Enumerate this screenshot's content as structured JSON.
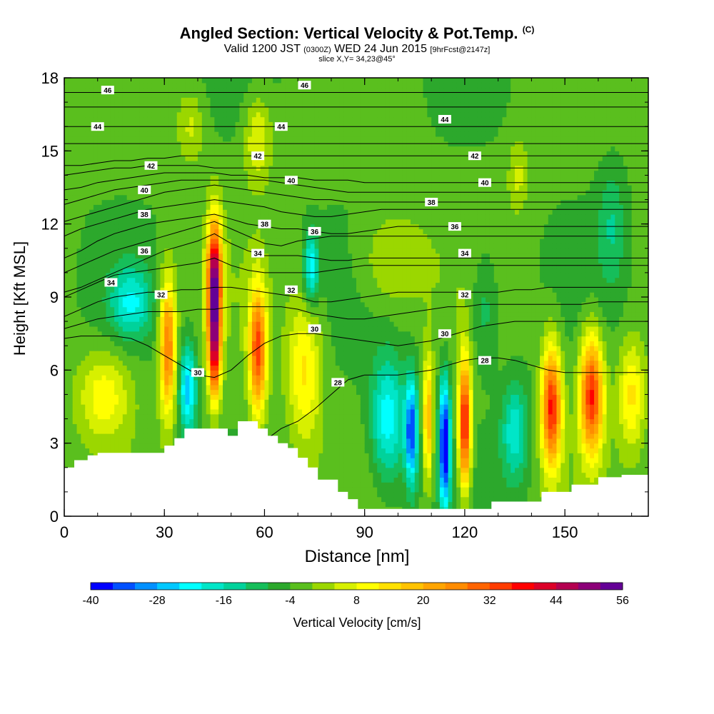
{
  "chart_data": {
    "type": "heatmap",
    "title": "Angled Section: Vertical Velocity & Pot.Temp.",
    "title_tag": "(C)",
    "subtitle_main_a": "Valid 1200 JST",
    "subtitle_small_a": "(0300Z)",
    "subtitle_main_b": "WED 24 Jun 2015",
    "subtitle_small_b": "[9hrFcst@2147z]",
    "slice_text": "slice X,Y= 34,23@45°",
    "xlabel": "Distance [nm]",
    "ylabel": "Height [Kft MSL]",
    "xlim": [
      0,
      175
    ],
    "ylim": [
      0,
      18
    ],
    "xticks": [
      "0",
      "30",
      "60",
      "90",
      "120",
      "150"
    ],
    "yticks": [
      "0",
      "3",
      "6",
      "9",
      "12",
      "15",
      "18"
    ],
    "colorbar": {
      "title": "Vertical Velocity [cm/s]",
      "range": [
        -40,
        56
      ],
      "step": 4,
      "tick_labels": [
        "-40",
        "-28",
        "-16",
        "-4",
        "8",
        "20",
        "32",
        "44",
        "56"
      ],
      "colors": [
        "#0000ff",
        "#0050ff",
        "#0090ff",
        "#00c8ff",
        "#00ffff",
        "#00e6c8",
        "#00d29b",
        "#16be5a",
        "#2ca82c",
        "#5abf1e",
        "#9bd700",
        "#d7f000",
        "#ffff00",
        "#ffe100",
        "#ffc300",
        "#ffa500",
        "#ff8c00",
        "#ff6400",
        "#ff3c00",
        "#ff0000",
        "#dc0028",
        "#b40050",
        "#8c0078",
        "#640096"
      ]
    },
    "terrain_profile": {
      "x": [
        0,
        3,
        3,
        7,
        7,
        10,
        10,
        30,
        30,
        33,
        33,
        36,
        36,
        49,
        49,
        52,
        52,
        58,
        58,
        61,
        61,
        64,
        64,
        67,
        67,
        70,
        70,
        73,
        73,
        76,
        76,
        82,
        82,
        85,
        85,
        88,
        88,
        128,
        128,
        143,
        143,
        152,
        152,
        160,
        160,
        167,
        167,
        175
      ],
      "y": [
        2.0,
        2.0,
        2.3,
        2.3,
        2.5,
        2.5,
        2.6,
        2.6,
        2.9,
        2.9,
        3.2,
        3.2,
        3.6,
        3.6,
        3.3,
        3.3,
        3.9,
        3.9,
        3.6,
        3.6,
        3.3,
        3.3,
        3.0,
        3.0,
        2.8,
        2.8,
        2.4,
        2.4,
        2.0,
        2.0,
        1.5,
        1.5,
        1.0,
        1.0,
        0.7,
        0.7,
        0.3,
        0.3,
        0.6,
        0.6,
        1.0,
        1.0,
        1.3,
        1.3,
        1.6,
        1.6,
        1.7,
        1.7
      ]
    },
    "wind_features": [
      {
        "x": 20,
        "z": 8.8,
        "w": -16,
        "rx": 6,
        "rz": 1.4
      },
      {
        "x": 31,
        "z": 7.0,
        "w": 32,
        "rx": 2.4,
        "rz": 2.8
      },
      {
        "x": 37,
        "z": 5.2,
        "w": -24,
        "rx": 2.5,
        "rz": 1.8
      },
      {
        "x": 45,
        "z": 9.5,
        "w": 56,
        "rx": 2.2,
        "rz": 2.6
      },
      {
        "x": 45,
        "z": 6.5,
        "w": 32,
        "rx": 1.8,
        "rz": 2.0
      },
      {
        "x": 58,
        "z": 6.8,
        "w": 36,
        "rx": 2.6,
        "rz": 2.6
      },
      {
        "x": 72,
        "z": 6.0,
        "w": 16,
        "rx": 5,
        "rz": 3
      },
      {
        "x": 74,
        "z": 10.2,
        "w": -20,
        "rx": 2.2,
        "rz": 1.4
      },
      {
        "x": 97,
        "z": 4.0,
        "w": -20,
        "rx": 5,
        "rz": 2.5
      },
      {
        "x": 104,
        "z": 3.5,
        "w": -32,
        "rx": 1.8,
        "rz": 2.2
      },
      {
        "x": 109,
        "z": 4.0,
        "w": 24,
        "rx": 1.4,
        "rz": 2.5
      },
      {
        "x": 114,
        "z": 3.0,
        "w": -40,
        "rx": 1.6,
        "rz": 2.6
      },
      {
        "x": 120,
        "z": 3.8,
        "w": 44,
        "rx": 1.8,
        "rz": 2.6
      },
      {
        "x": 135,
        "z": 3.5,
        "w": -16,
        "rx": 4,
        "rz": 2.0
      },
      {
        "x": 146,
        "z": 4.5,
        "w": 40,
        "rx": 3,
        "rz": 2.5
      },
      {
        "x": 158,
        "z": 5.0,
        "w": 40,
        "rx": 3.5,
        "rz": 2.4
      },
      {
        "x": 170,
        "z": 5.0,
        "w": 16,
        "rx": 4,
        "rz": 2.2
      },
      {
        "x": 58,
        "z": 15.5,
        "w": 12,
        "rx": 4,
        "rz": 1.8
      },
      {
        "x": 38,
        "z": 16.0,
        "w": 8,
        "rx": 4,
        "rz": 1.5
      },
      {
        "x": 136,
        "z": 14.0,
        "w": 8,
        "rx": 3,
        "rz": 1.5
      },
      {
        "x": 98,
        "z": 10.5,
        "w": 8,
        "rx": 10,
        "rz": 2.0
      },
      {
        "x": 126,
        "z": 8.5,
        "w": -8,
        "rx": 4,
        "rz": 2.5
      },
      {
        "x": 164,
        "z": 12.0,
        "w": -8,
        "rx": 4,
        "rz": 2.5
      },
      {
        "x": 12,
        "z": 5.0,
        "w": 14,
        "rx": 8,
        "rz": 1.8
      }
    ],
    "theta_levels": [
      {
        "value": 28,
        "ys": [
          0.8,
          0.9,
          1.0,
          1.1,
          1.2,
          1.3,
          1.5,
          1.6,
          1.8,
          2.0,
          2.3,
          2.6,
          3.1,
          3.6,
          3.9,
          4.4,
          5.0,
          5.6,
          5.8,
          5.8,
          5.8,
          5.9,
          6.0,
          6.2,
          6.4,
          6.5,
          6.5,
          6.4,
          6.2,
          6.0,
          5.9,
          5.9,
          5.9,
          5.9,
          5.9,
          5.9
        ],
        "labels": [
          [
            82,
            5.5
          ],
          [
            126,
            6.4
          ]
        ]
      },
      {
        "value": 30,
        "ys": [
          7.3,
          7.4,
          7.4,
          7.4,
          7.3,
          7.0,
          6.6,
          6.2,
          5.8,
          5.7,
          6.0,
          6.6,
          7.1,
          7.4,
          7.5,
          7.5,
          7.4,
          7.3,
          7.2,
          7.1,
          7.0,
          7.1,
          7.2,
          7.4,
          7.6,
          7.8,
          7.9,
          8.0,
          8.0,
          8.0,
          8.0,
          8.0,
          8.0,
          8.0,
          8.0,
          8.0
        ],
        "labels": [
          [
            40,
            5.9
          ],
          [
            75,
            7.7
          ],
          [
            114,
            7.5
          ]
        ]
      },
      {
        "value": 31,
        "ys": [
          7.7,
          7.9,
          8.1,
          8.2,
          8.3,
          8.4,
          8.4,
          8.4,
          8.5,
          8.5,
          8.6,
          8.6,
          8.6,
          8.6,
          8.5,
          8.3,
          8.2,
          8.1,
          8.1,
          8.2,
          8.3,
          8.4,
          8.5,
          8.6,
          8.6,
          8.7,
          8.7,
          8.7,
          8.7,
          8.7,
          8.7,
          8.7,
          8.8,
          8.8,
          8.8,
          8.8
        ],
        "labels": []
      },
      {
        "value": 32,
        "ys": [
          8.2,
          8.5,
          8.8,
          9.0,
          9.1,
          9.2,
          9.2,
          9.3,
          9.3,
          9.4,
          9.4,
          9.3,
          9.2,
          9.1,
          9.0,
          8.8,
          8.8,
          8.9,
          9.0,
          9.1,
          9.2,
          9.2,
          9.2,
          9.2,
          9.2,
          9.2,
          9.2,
          9.3,
          9.3,
          9.4,
          9.4,
          9.4,
          9.4,
          9.4,
          9.4,
          9.4
        ],
        "labels": [
          [
            29,
            9.1
          ],
          [
            68,
            9.3
          ],
          [
            120,
            9.1
          ]
        ]
      },
      {
        "value": 33,
        "ys": [
          9.0,
          9.3,
          9.6,
          9.9,
          10.0,
          10.1,
          10.2,
          10.3,
          10.4,
          10.6,
          10.3,
          10.1,
          10.0,
          10.0,
          10.0,
          10.0,
          10.1,
          10.2,
          10.3,
          10.3,
          10.3,
          10.3,
          10.3,
          10.3,
          10.3,
          10.3,
          10.3,
          10.3,
          10.3,
          10.3,
          10.3,
          10.3,
          10.3,
          10.3,
          10.3,
          10.3
        ],
        "labels": []
      },
      {
        "value": 34,
        "ys": [
          9.2,
          9.4,
          9.7,
          10.0,
          10.3,
          10.6,
          10.9,
          11.1,
          11.3,
          11.6,
          11.2,
          10.9,
          10.7,
          10.7,
          10.7,
          10.6,
          10.5,
          10.5,
          10.6,
          10.6,
          10.6,
          10.6,
          10.6,
          10.6,
          10.6,
          10.6,
          10.6,
          10.6,
          10.6,
          10.6,
          10.6,
          10.6,
          10.6,
          10.6,
          10.6,
          10.6
        ],
        "labels": [
          [
            14,
            9.6
          ],
          [
            58,
            10.8
          ],
          [
            120,
            10.8
          ]
        ]
      },
      {
        "value": 35,
        "ys": [
          10.0,
          10.3,
          10.6,
          10.9,
          11.1,
          11.3,
          11.5,
          11.7,
          11.9,
          12.1,
          11.8,
          11.5,
          11.2,
          11.1,
          11.3,
          11.4,
          11.5,
          11.5,
          11.5,
          11.5,
          11.5,
          11.5,
          11.5,
          11.5,
          11.5,
          11.5,
          11.5,
          11.5,
          11.5,
          11.5,
          11.5,
          11.5,
          11.5,
          11.5,
          11.5,
          11.5
        ],
        "labels": []
      },
      {
        "value": 36,
        "ys": [
          10.6,
          10.9,
          11.3,
          11.6,
          11.8,
          12.0,
          12.1,
          12.2,
          12.3,
          12.4,
          12.2,
          12.0,
          11.9,
          11.8,
          11.8,
          11.7,
          11.6,
          11.6,
          11.7,
          11.8,
          11.9,
          11.9,
          11.9,
          11.9,
          11.9,
          11.9,
          11.9,
          11.9,
          11.9,
          11.9,
          11.9,
          11.9,
          11.9,
          11.9,
          11.9,
          11.9
        ],
        "labels": [
          [
            24,
            10.9
          ],
          [
            75,
            11.7
          ],
          [
            117,
            11.9
          ]
        ]
      },
      {
        "value": 37,
        "ys": [
          11.5,
          11.8,
          12.0,
          12.2,
          12.4,
          12.6,
          12.7,
          12.8,
          12.9,
          13.0,
          12.9,
          12.8,
          12.7,
          12.5,
          12.4,
          12.3,
          12.3,
          12.4,
          12.5,
          12.6,
          12.6,
          12.6,
          12.6,
          12.6,
          12.6,
          12.6,
          12.6,
          12.6,
          12.6,
          12.6,
          12.6,
          12.6,
          12.6,
          12.6,
          12.6,
          12.6
        ],
        "labels": []
      },
      {
        "value": 38,
        "ys": [
          12.1,
          12.3,
          12.5,
          12.7,
          12.9,
          13.1,
          13.3,
          13.4,
          13.5,
          13.6,
          13.5,
          13.4,
          13.3,
          13.2,
          13.1,
          13.0,
          13.0,
          12.9,
          12.9,
          12.9,
          12.9,
          12.9,
          12.9,
          12.9,
          12.9,
          12.9,
          12.9,
          12.9,
          12.9,
          12.9,
          12.9,
          12.9,
          12.9,
          12.9,
          12.9,
          12.9
        ],
        "labels": [
          [
            24,
            12.4
          ],
          [
            60,
            12.0
          ],
          [
            110,
            12.9
          ]
        ]
      },
      {
        "value": 39,
        "ys": [
          12.8,
          13.0,
          13.2,
          13.4,
          13.5,
          13.6,
          13.7,
          13.8,
          13.8,
          13.8,
          13.8,
          13.8,
          13.8,
          13.7,
          13.6,
          13.5,
          13.4,
          13.3,
          13.3,
          13.3,
          13.3,
          13.3,
          13.3,
          13.3,
          13.3,
          13.3,
          13.3,
          13.3,
          13.3,
          13.3,
          13.3,
          13.3,
          13.3,
          13.3,
          13.3,
          13.3
        ],
        "labels": []
      },
      {
        "value": 40,
        "ys": [
          13.4,
          13.5,
          13.7,
          13.8,
          13.9,
          14.0,
          14.1,
          14.1,
          14.1,
          14.1,
          14.0,
          14.0,
          13.9,
          13.9,
          13.9,
          13.8,
          13.8,
          13.8,
          13.7,
          13.7,
          13.7,
          13.7,
          13.7,
          13.7,
          13.7,
          13.7,
          13.7,
          13.7,
          13.7,
          13.7,
          13.7,
          13.7,
          13.7,
          13.7,
          13.7,
          13.7
        ],
        "labels": [
          [
            24,
            13.4
          ],
          [
            68,
            13.8
          ],
          [
            126,
            13.7
          ]
        ]
      },
      {
        "value": 41,
        "ys": [
          14.0,
          14.1,
          14.2,
          14.3,
          14.3,
          14.4,
          14.4,
          14.4,
          14.4,
          14.3,
          14.3,
          14.3,
          14.3,
          14.3,
          14.3,
          14.3,
          14.3,
          14.3,
          14.3,
          14.3,
          14.3,
          14.3,
          14.3,
          14.3,
          14.3,
          14.3,
          14.3,
          14.3,
          14.3,
          14.3,
          14.3,
          14.3,
          14.3,
          14.3,
          14.3,
          14.3
        ],
        "labels": []
      },
      {
        "value": 42,
        "ys": [
          14.4,
          14.4,
          14.5,
          14.6,
          14.6,
          14.7,
          14.7,
          14.8,
          14.8,
          14.8,
          14.8,
          14.8,
          14.8,
          14.8,
          14.8,
          14.8,
          14.8,
          14.8,
          14.8,
          14.8,
          14.8,
          14.8,
          14.8,
          14.8,
          14.8,
          14.8,
          14.8,
          14.8,
          14.8,
          14.8,
          14.8,
          14.8,
          14.8,
          14.8,
          14.8,
          14.8
        ],
        "labels": [
          [
            26,
            14.4
          ],
          [
            58,
            14.8
          ],
          [
            123,
            14.8
          ]
        ]
      },
      {
        "value": 43,
        "ys": [
          15.3,
          15.3,
          15.3,
          15.3,
          15.3,
          15.3,
          15.3,
          15.3,
          15.3,
          15.3,
          15.3,
          15.3,
          15.3,
          15.3,
          15.3,
          15.3,
          15.3,
          15.3,
          15.3,
          15.3,
          15.3,
          15.3,
          15.3,
          15.3,
          15.3,
          15.3,
          15.3,
          15.3,
          15.3,
          15.3,
          15.3,
          15.3,
          15.3,
          15.3,
          15.3,
          15.3
        ],
        "labels": []
      },
      {
        "value": 44,
        "ys": [
          16.0,
          16.0,
          16.0,
          16.0,
          16.0,
          16.0,
          16.0,
          16.0,
          16.0,
          16.0,
          16.0,
          16.0,
          16.0,
          16.0,
          16.0,
          16.0,
          16.0,
          16.0,
          16.0,
          16.0,
          16.0,
          16.0,
          16.0,
          16.0,
          16.0,
          16.0,
          16.0,
          16.0,
          16.0,
          16.0,
          16.0,
          16.0,
          16.0,
          16.0,
          16.0,
          16.0
        ],
        "labels": [
          [
            10,
            16.0
          ],
          [
            65,
            16.0
          ],
          [
            114,
            16.3
          ]
        ]
      },
      {
        "value": 45,
        "ys": [
          16.8,
          16.8,
          16.8,
          16.8,
          16.8,
          16.8,
          16.8,
          16.8,
          16.8,
          16.8,
          16.8,
          16.8,
          16.8,
          16.8,
          16.8,
          16.8,
          16.8,
          16.8,
          16.8,
          16.8,
          16.8,
          16.8,
          16.8,
          16.8,
          16.8,
          16.8,
          16.8,
          16.8,
          16.8,
          16.8,
          16.8,
          16.8,
          16.8,
          16.8,
          16.8,
          16.8
        ],
        "labels": []
      },
      {
        "value": 46,
        "ys": [
          17.4,
          17.4,
          17.4,
          17.4,
          17.4,
          17.4,
          17.4,
          17.4,
          17.4,
          17.4,
          17.4,
          17.4,
          17.4,
          17.4,
          17.4,
          17.4,
          17.4,
          17.4,
          17.4,
          17.4,
          17.4,
          17.4,
          17.4,
          17.4,
          17.4,
          17.4,
          17.4,
          17.4,
          17.4,
          17.4,
          17.4,
          17.4,
          17.4,
          17.4,
          17.4,
          17.4
        ],
        "labels": [
          [
            13,
            17.5
          ],
          [
            72,
            17.7
          ]
        ]
      }
    ]
  }
}
